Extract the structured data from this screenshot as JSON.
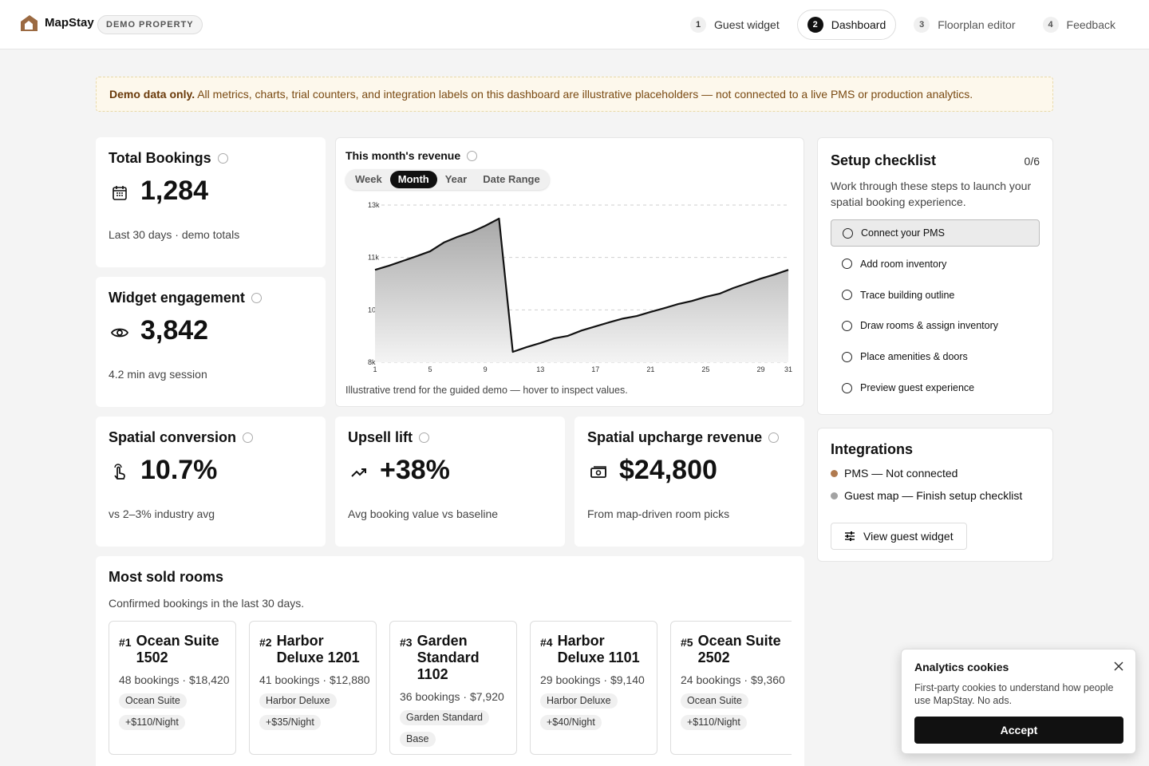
{
  "header": {
    "brand": "MapStay",
    "badge": "DEMO PROPERTY",
    "active_step": 1,
    "steps": [
      {
        "number": "1",
        "label": "Guest widget"
      },
      {
        "number": "2",
        "label": "Dashboard"
      },
      {
        "number": "3",
        "label": "Floorplan editor"
      },
      {
        "number": "4",
        "label": "Feedback"
      }
    ]
  },
  "banner": {
    "strong": "Demo data only.",
    "text": "All metrics, charts, trial counters, and integration labels on this dashboard are illustrative placeholders — not connected to a live PMS or production analytics."
  },
  "metrics": [
    {
      "title": "Total Bookings",
      "value": "1,284",
      "note": "Last 30 days · demo totals"
    },
    {
      "title": "Widget engagement",
      "value": "3,842",
      "note": "4.2 min avg session"
    },
    {
      "title": "Spatial conversion",
      "value": "10.7%",
      "note": "vs 2–3% industry avg"
    },
    {
      "title": "Upsell lift",
      "value": "+38%",
      "note": "Avg booking value vs baseline"
    },
    {
      "title": "Spatial upcharge revenue",
      "value": "$24,800",
      "note": "From map-driven room picks"
    }
  ],
  "revenue_chart": {
    "type": "area",
    "title": "This month's revenue",
    "tabs": [
      "Week",
      "Month",
      "Year",
      "Date Range"
    ],
    "active_tab": 1,
    "x": [
      1,
      2,
      3,
      4,
      5,
      6,
      7,
      8,
      9,
      10,
      11,
      12,
      13,
      14,
      15,
      16,
      17,
      18,
      19,
      20,
      21,
      22,
      23,
      24,
      25,
      26,
      27,
      28,
      29,
      30,
      31
    ],
    "values": [
      10940,
      11070,
      11220,
      11370,
      11530,
      11810,
      11990,
      12140,
      12340,
      12570,
      8330,
      8480,
      8610,
      8760,
      8840,
      9010,
      9140,
      9270,
      9390,
      9470,
      9600,
      9720,
      9850,
      9950,
      10080,
      10180,
      10360,
      10510,
      10660,
      10790,
      10940
    ],
    "xlim": [
      1,
      31
    ],
    "xticks": [
      1,
      5,
      9,
      13,
      17,
      21,
      25,
      29,
      31
    ],
    "ylim": [
      8000,
      13000
    ],
    "yticks": [
      {
        "value": 8000,
        "label": "8k"
      },
      {
        "value": 9667,
        "label": "10k"
      },
      {
        "value": 11333,
        "label": "11k"
      },
      {
        "value": 13000,
        "label": "13k"
      }
    ],
    "grid": true,
    "color": "#111111",
    "caption": "Illustrative trend for the guided demo — hover to inspect values."
  },
  "checklist": {
    "title": "Setup checklist",
    "progress": "0/6",
    "description": "Work through these steps to launch your spatial booking experience.",
    "active_item": 0,
    "items": [
      "Connect your PMS",
      "Add room inventory",
      "Trace building outline",
      "Draw rooms & assign inventory",
      "Place amenities & doors",
      "Preview guest experience"
    ]
  },
  "integrations": {
    "title": "Integrations",
    "button": "View guest widget",
    "items": [
      {
        "label": "PMS — Not connected",
        "color": "#b07a4f"
      },
      {
        "label": "Guest map — Finish setup checklist",
        "color": "#a3a3a3"
      }
    ]
  },
  "rooms": {
    "title": "Most sold rooms",
    "subtitle": "Confirmed bookings in the last 30 days.",
    "items": [
      {
        "rank": "#1",
        "name": "Ocean Suite 1502",
        "stats": "48 bookings · $18,420",
        "tags": [
          "Ocean Suite",
          "+$110/Night"
        ]
      },
      {
        "rank": "#2",
        "name": "Harbor Deluxe 1201",
        "stats": "41 bookings · $12,880",
        "tags": [
          "Harbor Deluxe",
          "+$35/Night"
        ]
      },
      {
        "rank": "#3",
        "name": "Garden Standard 1102",
        "stats": "36 bookings · $7,920",
        "tags": [
          "Garden Standard",
          "Base"
        ]
      },
      {
        "rank": "#4",
        "name": "Harbor Deluxe 1101",
        "stats": "29 bookings · $9,140",
        "tags": [
          "Harbor Deluxe",
          "+$40/Night"
        ]
      },
      {
        "rank": "#5",
        "name": "Ocean Suite 2502",
        "stats": "24 bookings · $9,360",
        "tags": [
          "Ocean Suite",
          "+$110/Night"
        ]
      }
    ]
  },
  "cookies": {
    "title": "Analytics cookies",
    "text": "First-party cookies to understand how people use MapStay. No ads.",
    "button": "Accept"
  }
}
